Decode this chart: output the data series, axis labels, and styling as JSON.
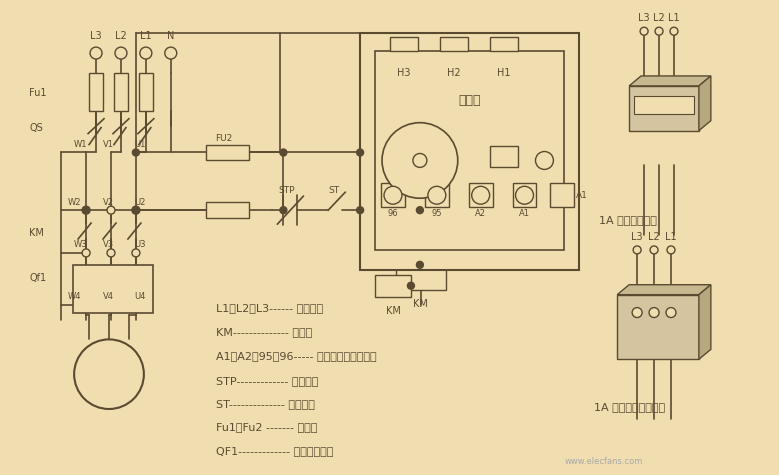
{
  "bg_color": "#f0ddb0",
  "lc": "#5a4a30",
  "lw": 1.0,
  "fig_w": 7.79,
  "fig_h": 4.75,
  "legend": [
    "L1、L2、L3------ 三相电源",
    "KM-------------- 接触器",
    "A1、A2、95、96----- 保护器接线端子号码",
    "STP------------- 停止按钒",
    "ST-------------- 启动按钒",
    "Fu1、Fu2 ------- 燕断器",
    "QF1------------- 电动机保护器"
  ],
  "website": "www.elecfans.com",
  "right_label1": "1A 以上一次穿心",
  "right_label2": "1A 以下各相三次穿心",
  "protector_label": "保护器"
}
